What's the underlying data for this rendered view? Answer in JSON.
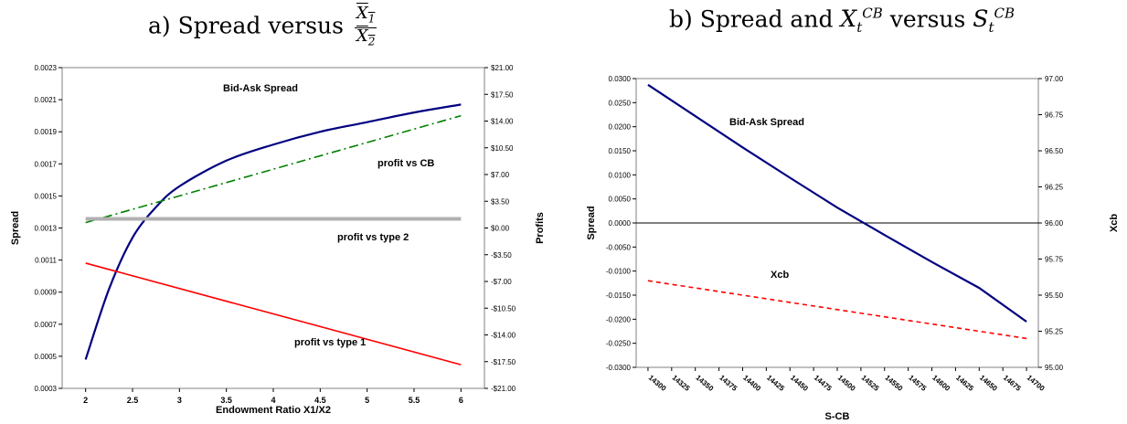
{
  "titles": {
    "a_prefix": "a) Spread versus",
    "a_num": "X",
    "a_num_sub": "1",
    "a_den": "X",
    "a_den_sub": "2",
    "b_prefix": "b) Spread and",
    "b_var": "X",
    "b_sup1": "CB",
    "b_sub1": "t",
    "b_mid": "versus",
    "b_var2": "S",
    "b_sup2": "CB",
    "b_sub2": "t"
  },
  "chart_data": [
    {
      "type": "line",
      "xlabel": "Endowment Ratio X1/X2",
      "ylabel": "Spread",
      "y2label": "Profits",
      "x_ticks": [
        "2",
        "2.5",
        "3",
        "3.5",
        "4",
        "4.5",
        "5",
        "5.5",
        "6"
      ],
      "xlim": [
        1.75,
        6.25
      ],
      "ylim": [
        0.0003,
        0.0023
      ],
      "y_ticks": [
        "0.0023",
        "0.0021",
        "0.0019",
        "0.0017",
        "0.0015",
        "0.0013",
        "0.0011",
        "0.0009",
        "0.0007",
        "0.0005",
        "0.0003"
      ],
      "y2lim": [
        -21,
        21
      ],
      "y2_ticks": [
        "$21.00",
        "$17.50",
        "$14.00",
        "$10.50",
        "$7.00",
        "$3.50",
        "$0.00",
        "-$3.50",
        "-$7.00",
        "-$10.50",
        "-$14.00",
        "-$17.50",
        "-$21.00"
      ],
      "series": [
        {
          "name": "Bid-Ask Spread",
          "axis": "left",
          "color": "#000080",
          "style": "solid",
          "x": [
            2,
            2.25,
            2.5,
            2.75,
            3,
            3.5,
            4,
            4.5,
            5,
            5.5,
            6
          ],
          "values": [
            0.00048,
            0.00092,
            0.00124,
            0.00143,
            0.00156,
            0.00172,
            0.00182,
            0.0019,
            0.00196,
            0.00202,
            0.00207
          ]
        },
        {
          "name": "profit vs CB",
          "axis": "right",
          "color": "#008000",
          "style": "dashdot",
          "x": [
            2,
            6
          ],
          "values": [
            0.7,
            14.7
          ]
        },
        {
          "name": "profit vs type 2",
          "axis": "right",
          "color": "#b0b0b0",
          "style": "thick",
          "x": [
            2,
            6
          ],
          "values": [
            1.2,
            1.2
          ]
        },
        {
          "name": "profit vs type 1",
          "axis": "right",
          "color": "#ff0000",
          "style": "solid",
          "x": [
            2,
            6
          ],
          "values": [
            -4.6,
            -17.9
          ]
        }
      ]
    },
    {
      "type": "line",
      "xlabel": "S-CB",
      "ylabel": "Spread",
      "y2label": "Xcb",
      "x_ticks": [
        "14300",
        "14325",
        "14350",
        "14375",
        "14400",
        "14425",
        "14450",
        "14475",
        "14500",
        "14525",
        "14550",
        "14575",
        "14600",
        "14625",
        "14650",
        "14675",
        "14700"
      ],
      "xlim": [
        14287.5,
        14712.5
      ],
      "ylim": [
        -0.03,
        0.03
      ],
      "y_ticks": [
        "0.0300",
        "0.0250",
        "0.0200",
        "0.0150",
        "0.0100",
        "0.0050",
        "0.0000",
        "-0.0050",
        "-0.0100",
        "-0.0150",
        "-0.0200",
        "-0.0250",
        "-0.0300"
      ],
      "y2lim": [
        95.0,
        97.0
      ],
      "y2_ticks": [
        "97.00",
        "96.75",
        "96.50",
        "96.25",
        "96.00",
        "95.75",
        "95.50",
        "95.25",
        "95.00"
      ],
      "series": [
        {
          "name": "Bid-Ask Spread",
          "axis": "left",
          "color": "#000080",
          "style": "solid",
          "x": [
            14300,
            14350,
            14400,
            14450,
            14500,
            14550,
            14600,
            14650,
            14700
          ],
          "values": [
            0.0287,
            0.0222,
            0.0157,
            0.0094,
            0.0032,
            -0.0025,
            -0.0081,
            -0.0135,
            -0.0205
          ]
        },
        {
          "name": "Xcb",
          "axis": "right",
          "color": "#ff0000",
          "style": "dashed",
          "x": [
            14300,
            14700
          ],
          "values": [
            95.6,
            95.2
          ]
        }
      ]
    }
  ]
}
